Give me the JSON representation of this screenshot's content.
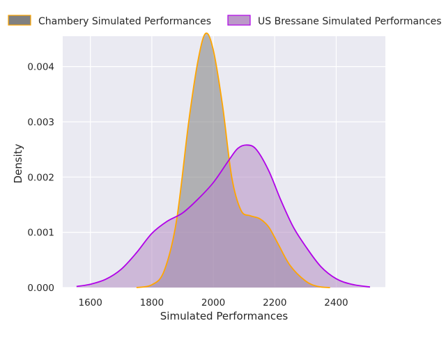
{
  "chart_data": {
    "type": "area",
    "kind": "kde_density",
    "xlabel": "Simulated Performances",
    "ylabel": "Density",
    "xlim": [
      1510,
      2560
    ],
    "ylim": [
      0,
      0.00455
    ],
    "xticks": [
      1600,
      1800,
      2000,
      2200,
      2400
    ],
    "xtick_labels": [
      "1600",
      "1800",
      "2000",
      "2200",
      "2400"
    ],
    "yticks": [
      0,
      0.001,
      0.002,
      0.003,
      0.004
    ],
    "ytick_labels": [
      "0.000",
      "0.001",
      "0.002",
      "0.003",
      "0.004"
    ],
    "grid": true,
    "legend_position": "top",
    "colors": {
      "axes_background": "#eaeaf2",
      "grid": "#ffffff",
      "overlap_tint": "#8b6b8b"
    },
    "series": [
      {
        "name": "Chambery Simulated Performances",
        "line_color": "#ffa500",
        "fill_color": "#808080",
        "fill_opacity": 0.55,
        "x": [
          1750,
          1800,
          1840,
          1880,
          1920,
          1950,
          1975,
          2000,
          2030,
          2060,
          2090,
          2120,
          2150,
          2180,
          2210,
          2250,
          2300,
          2340,
          2380
        ],
        "y": [
          0,
          5e-05,
          0.0003,
          0.0012,
          0.003,
          0.0041,
          0.0046,
          0.0043,
          0.0033,
          0.002,
          0.0014,
          0.0013,
          0.00125,
          0.0011,
          0.0008,
          0.0004,
          0.00012,
          2e-05,
          0
        ]
      },
      {
        "name": "US Bressane Simulated Performances",
        "line_color": "#b100e8",
        "fill_color": "#b48ec2",
        "fill_opacity": 0.55,
        "x": [
          1555,
          1600,
          1650,
          1700,
          1750,
          1800,
          1850,
          1900,
          1950,
          2000,
          2050,
          2080,
          2110,
          2140,
          2180,
          2220,
          2260,
          2300,
          2350,
          2400,
          2450,
          2510
        ],
        "y": [
          2e-05,
          6e-05,
          0.00015,
          0.00033,
          0.00063,
          0.00098,
          0.0012,
          0.00135,
          0.0016,
          0.0019,
          0.0023,
          0.00252,
          0.00258,
          0.0025,
          0.00212,
          0.00158,
          0.0011,
          0.00075,
          0.00038,
          0.00016,
          6e-05,
          1e-05
        ]
      }
    ]
  }
}
